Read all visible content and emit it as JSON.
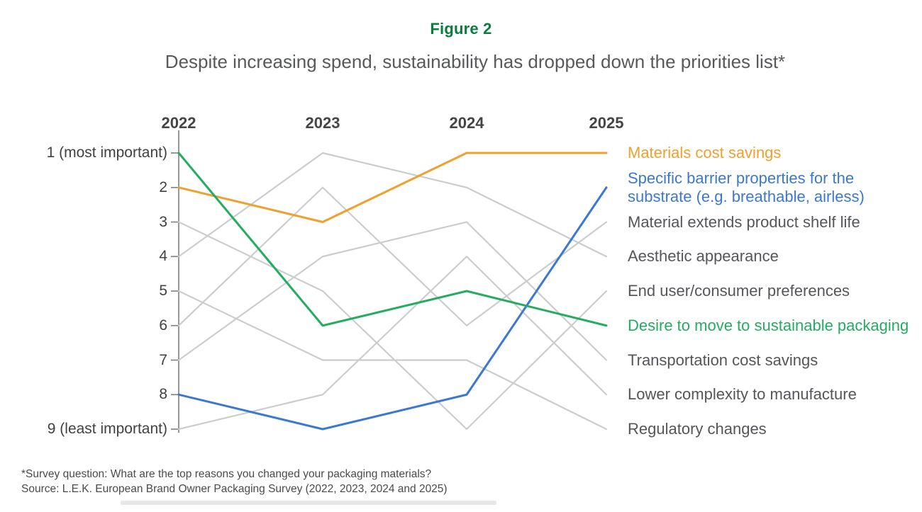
{
  "figure_label": "Figure 2",
  "title": "Despite increasing spend, sustainability has dropped down the priorities list*",
  "footnotes": {
    "line1": "*Survey question: What are the top reasons you changed your packaging materials?",
    "line2": "Source: L.E.K. European Brand Owner Packaging Survey (2022, 2023, 2024 and 2025)"
  },
  "colors": {
    "figure_label_green": "#0A7C3E",
    "title_gray": "#58595B",
    "axis_gray": "#7F7F7F",
    "axis_text": "#414141",
    "gray_line": "#CACCCE",
    "gray_label_text": "#54565A",
    "orange": "#EFA02F",
    "blue": "#3B78D4",
    "green": "#24AC60"
  },
  "chart_data": {
    "type": "line",
    "subtype": "bump-ranking",
    "x_categories": [
      "2022",
      "2023",
      "2024",
      "2025"
    ],
    "y_axis": {
      "min": 1,
      "max": 9,
      "inverted": true,
      "tick_labels": [
        "1 (most important)",
        "2",
        "3",
        "4",
        "5",
        "6",
        "7",
        "8",
        "9 (least important)"
      ]
    },
    "grid": false,
    "legend_position": "right",
    "series": [
      {
        "name": "Materials cost savings",
        "color_key": "orange",
        "values": [
          2,
          3,
          1,
          1
        ]
      },
      {
        "name": "Specific barrier properties for the substrate (e.g. breathable, airless)",
        "color_key": "blue",
        "values": [
          8,
          9,
          8,
          2
        ]
      },
      {
        "name": "Material extends product shelf life",
        "color_key": "gray",
        "values": [
          6,
          2,
          6,
          3
        ]
      },
      {
        "name": "Aesthetic appearance",
        "color_key": "gray",
        "values": [
          4,
          1,
          2,
          4
        ]
      },
      {
        "name": "End user/consumer preferences",
        "color_key": "gray",
        "values": [
          3,
          5,
          9,
          5
        ]
      },
      {
        "name": "Desire to move to sustainable packaging",
        "color_key": "green",
        "values": [
          1,
          6,
          5,
          6
        ]
      },
      {
        "name": "Transportation cost savings",
        "color_key": "gray",
        "values": [
          7,
          4,
          3,
          7
        ]
      },
      {
        "name": "Lower complexity to manufacture",
        "color_key": "gray",
        "values": [
          9,
          8,
          4,
          8
        ]
      },
      {
        "name": "Regulatory changes",
        "color_key": "gray",
        "values": [
          5,
          7,
          7,
          9
        ]
      }
    ]
  }
}
